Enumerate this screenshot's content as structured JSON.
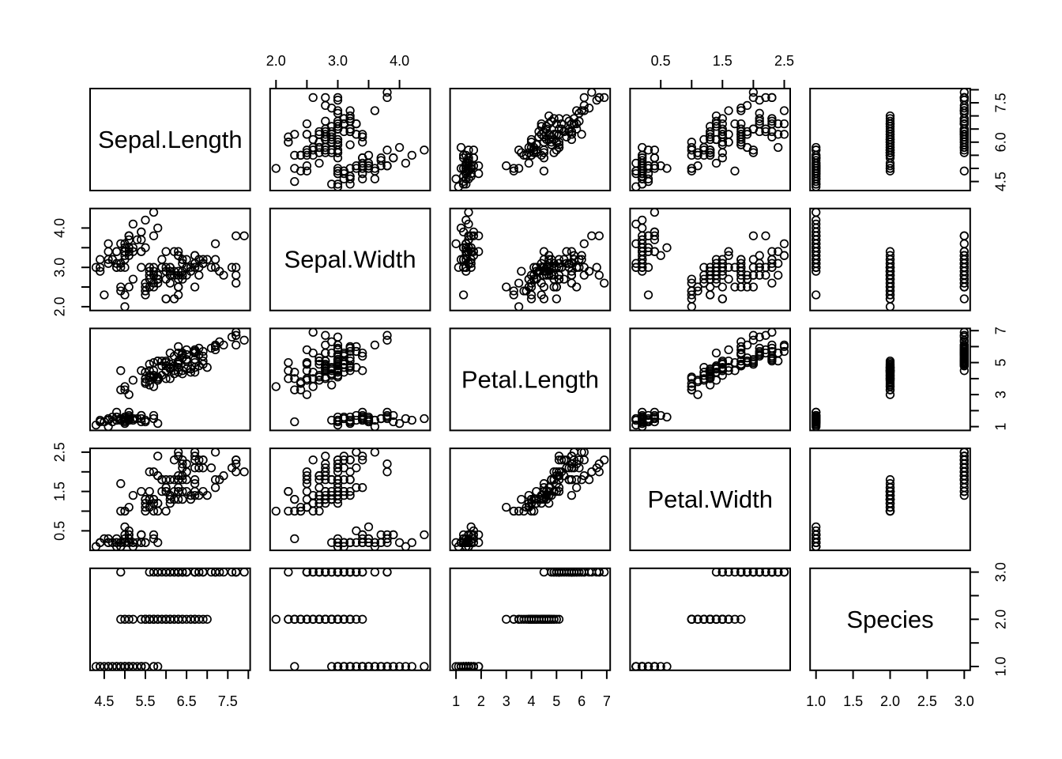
{
  "figure": {
    "background": "#ffffff",
    "stroke_color": "#000000",
    "point_style": "open-circle"
  },
  "chart_data": {
    "type": "scatter",
    "subtype": "scatterplot-matrix (R pairs plot)",
    "title": "",
    "legend": "none",
    "grid": "off",
    "variables": [
      {
        "name": "Sepal.Length",
        "range": [
          4.156,
          8.044
        ],
        "ticks": [
          4.5,
          5.0,
          5.5,
          6.0,
          6.5,
          7.0,
          7.5,
          8.0
        ],
        "labels_h": [
          [
            4.5,
            "4.5"
          ],
          [
            5.5,
            "5.5"
          ],
          [
            6.5,
            "6.5"
          ],
          [
            7.5,
            "7.5"
          ]
        ],
        "labels_v": [
          [
            4.5,
            "4.5"
          ],
          [
            6.0,
            "6.0"
          ],
          [
            7.5,
            "7.5"
          ]
        ]
      },
      {
        "name": "Sepal.Width",
        "range": [
          1.904,
          4.496
        ],
        "ticks": [
          2.0,
          2.5,
          3.0,
          3.5,
          4.0
        ],
        "labels_h": [
          [
            2.0,
            "2.0"
          ],
          [
            3.0,
            "3.0"
          ],
          [
            4.0,
            "4.0"
          ]
        ],
        "labels_v": [
          [
            2.0,
            "2.0"
          ],
          [
            3.0,
            "3.0"
          ],
          [
            4.0,
            "4.0"
          ]
        ]
      },
      {
        "name": "Petal.Length",
        "range": [
          0.764,
          7.136
        ],
        "ticks": [
          1,
          2,
          3,
          4,
          5,
          6,
          7
        ],
        "labels_h": [
          [
            1,
            "1"
          ],
          [
            2,
            "2"
          ],
          [
            3,
            "3"
          ],
          [
            4,
            "4"
          ],
          [
            5,
            "5"
          ],
          [
            6,
            "6"
          ],
          [
            7,
            "7"
          ]
        ],
        "labels_v": [
          [
            1,
            "1"
          ],
          [
            3,
            "3"
          ],
          [
            5,
            "5"
          ],
          [
            7,
            "7"
          ]
        ]
      },
      {
        "name": "Petal.Width",
        "range": [
          0.004,
          2.596
        ],
        "ticks": [
          0.5,
          1.0,
          1.5,
          2.0,
          2.5
        ],
        "labels_h": [
          [
            0.5,
            "0.5"
          ],
          [
            1.5,
            "1.5"
          ],
          [
            2.5,
            "2.5"
          ]
        ],
        "labels_v": [
          [
            0.5,
            "0.5"
          ],
          [
            1.5,
            "1.5"
          ],
          [
            2.5,
            "2.5"
          ]
        ]
      },
      {
        "name": "Species",
        "range": [
          0.92,
          3.08
        ],
        "ticks": [
          1.0,
          1.5,
          2.0,
          2.5,
          3.0
        ],
        "labels_h": [
          [
            1.0,
            "1.0"
          ],
          [
            1.5,
            "1.5"
          ],
          [
            2.0,
            "2.0"
          ],
          [
            2.5,
            "2.5"
          ],
          [
            3.0,
            "3.0"
          ]
        ],
        "labels_v": [
          [
            1.0,
            "1.0"
          ],
          [
            2.0,
            "2.0"
          ],
          [
            3.0,
            "3.0"
          ]
        ]
      }
    ],
    "layout": {
      "rows": 5,
      "cols": 5,
      "top_axis_cols": [
        1,
        3
      ],
      "bottom_axis_cols": [
        0,
        2,
        4
      ],
      "left_axis_rows": [
        1,
        3
      ],
      "right_axis_rows": [
        0,
        2,
        4
      ],
      "diagonal": "variable-name-labels"
    },
    "points": [
      [
        5.1,
        3.5,
        1.4,
        0.2,
        1
      ],
      [
        4.9,
        3.0,
        1.4,
        0.2,
        1
      ],
      [
        4.7,
        3.2,
        1.3,
        0.2,
        1
      ],
      [
        4.6,
        3.1,
        1.5,
        0.2,
        1
      ],
      [
        5.0,
        3.6,
        1.4,
        0.2,
        1
      ],
      [
        5.4,
        3.9,
        1.7,
        0.4,
        1
      ],
      [
        4.6,
        3.4,
        1.4,
        0.3,
        1
      ],
      [
        5.0,
        3.4,
        1.5,
        0.2,
        1
      ],
      [
        4.4,
        2.9,
        1.4,
        0.2,
        1
      ],
      [
        4.9,
        3.1,
        1.5,
        0.1,
        1
      ],
      [
        5.4,
        3.7,
        1.5,
        0.2,
        1
      ],
      [
        4.8,
        3.4,
        1.6,
        0.2,
        1
      ],
      [
        4.8,
        3.0,
        1.4,
        0.1,
        1
      ],
      [
        4.3,
        3.0,
        1.1,
        0.1,
        1
      ],
      [
        5.8,
        4.0,
        1.2,
        0.2,
        1
      ],
      [
        5.7,
        4.4,
        1.5,
        0.4,
        1
      ],
      [
        5.4,
        3.9,
        1.3,
        0.4,
        1
      ],
      [
        5.1,
        3.5,
        1.4,
        0.3,
        1
      ],
      [
        5.7,
        3.8,
        1.7,
        0.3,
        1
      ],
      [
        5.1,
        3.8,
        1.5,
        0.3,
        1
      ],
      [
        5.4,
        3.4,
        1.7,
        0.2,
        1
      ],
      [
        5.1,
        3.7,
        1.5,
        0.4,
        1
      ],
      [
        4.6,
        3.6,
        1.0,
        0.2,
        1
      ],
      [
        5.1,
        3.3,
        1.7,
        0.5,
        1
      ],
      [
        4.8,
        3.4,
        1.9,
        0.2,
        1
      ],
      [
        5.0,
        3.0,
        1.6,
        0.2,
        1
      ],
      [
        5.0,
        3.4,
        1.6,
        0.4,
        1
      ],
      [
        5.2,
        3.5,
        1.5,
        0.2,
        1
      ],
      [
        5.2,
        3.4,
        1.4,
        0.2,
        1
      ],
      [
        4.7,
        3.2,
        1.6,
        0.2,
        1
      ],
      [
        4.8,
        3.1,
        1.6,
        0.2,
        1
      ],
      [
        5.4,
        3.4,
        1.5,
        0.4,
        1
      ],
      [
        5.2,
        4.1,
        1.5,
        0.1,
        1
      ],
      [
        5.5,
        4.2,
        1.4,
        0.2,
        1
      ],
      [
        4.9,
        3.1,
        1.5,
        0.2,
        1
      ],
      [
        5.0,
        3.2,
        1.2,
        0.2,
        1
      ],
      [
        5.5,
        3.5,
        1.3,
        0.2,
        1
      ],
      [
        4.9,
        3.6,
        1.4,
        0.1,
        1
      ],
      [
        4.4,
        3.0,
        1.3,
        0.2,
        1
      ],
      [
        5.1,
        3.4,
        1.5,
        0.2,
        1
      ],
      [
        5.0,
        3.5,
        1.3,
        0.3,
        1
      ],
      [
        4.5,
        2.3,
        1.3,
        0.3,
        1
      ],
      [
        4.4,
        3.2,
        1.3,
        0.2,
        1
      ],
      [
        5.0,
        3.5,
        1.6,
        0.6,
        1
      ],
      [
        5.1,
        3.8,
        1.9,
        0.4,
        1
      ],
      [
        4.8,
        3.0,
        1.4,
        0.3,
        1
      ],
      [
        5.1,
        3.8,
        1.6,
        0.2,
        1
      ],
      [
        4.6,
        3.2,
        1.4,
        0.2,
        1
      ],
      [
        5.3,
        3.7,
        1.5,
        0.2,
        1
      ],
      [
        5.0,
        3.3,
        1.4,
        0.2,
        1
      ],
      [
        7.0,
        3.2,
        4.7,
        1.4,
        2
      ],
      [
        6.4,
        3.2,
        4.5,
        1.5,
        2
      ],
      [
        6.9,
        3.1,
        4.9,
        1.5,
        2
      ],
      [
        5.5,
        2.3,
        4.0,
        1.3,
        2
      ],
      [
        6.5,
        2.8,
        4.6,
        1.5,
        2
      ],
      [
        5.7,
        2.8,
        4.5,
        1.3,
        2
      ],
      [
        6.3,
        3.3,
        4.7,
        1.6,
        2
      ],
      [
        4.9,
        2.4,
        3.3,
        1.0,
        2
      ],
      [
        6.6,
        2.9,
        4.6,
        1.3,
        2
      ],
      [
        5.2,
        2.7,
        3.9,
        1.4,
        2
      ],
      [
        5.0,
        2.0,
        3.5,
        1.0,
        2
      ],
      [
        5.9,
        3.0,
        4.2,
        1.5,
        2
      ],
      [
        6.0,
        2.2,
        4.0,
        1.0,
        2
      ],
      [
        6.1,
        2.9,
        4.7,
        1.4,
        2
      ],
      [
        5.6,
        2.9,
        3.6,
        1.3,
        2
      ],
      [
        6.7,
        3.1,
        4.4,
        1.4,
        2
      ],
      [
        5.6,
        3.0,
        4.5,
        1.5,
        2
      ],
      [
        5.8,
        2.7,
        4.1,
        1.0,
        2
      ],
      [
        6.2,
        2.2,
        4.5,
        1.5,
        2
      ],
      [
        5.6,
        2.5,
        3.9,
        1.1,
        2
      ],
      [
        5.9,
        3.2,
        4.8,
        1.8,
        2
      ],
      [
        6.1,
        2.8,
        4.0,
        1.3,
        2
      ],
      [
        6.3,
        2.5,
        4.9,
        1.5,
        2
      ],
      [
        6.1,
        2.8,
        4.7,
        1.2,
        2
      ],
      [
        6.4,
        2.9,
        4.3,
        1.3,
        2
      ],
      [
        6.6,
        3.0,
        4.4,
        1.4,
        2
      ],
      [
        6.8,
        2.8,
        4.8,
        1.4,
        2
      ],
      [
        6.7,
        3.0,
        5.0,
        1.7,
        2
      ],
      [
        6.0,
        2.9,
        4.5,
        1.5,
        2
      ],
      [
        5.7,
        2.6,
        3.5,
        1.0,
        2
      ],
      [
        5.5,
        2.4,
        3.8,
        1.1,
        2
      ],
      [
        5.5,
        2.4,
        3.7,
        1.0,
        2
      ],
      [
        5.8,
        2.7,
        3.9,
        1.2,
        2
      ],
      [
        6.0,
        2.7,
        5.1,
        1.6,
        2
      ],
      [
        5.4,
        3.0,
        4.5,
        1.5,
        2
      ],
      [
        6.0,
        3.4,
        4.5,
        1.6,
        2
      ],
      [
        6.7,
        3.1,
        4.7,
        1.5,
        2
      ],
      [
        6.3,
        2.3,
        4.4,
        1.3,
        2
      ],
      [
        5.6,
        3.0,
        4.1,
        1.3,
        2
      ],
      [
        5.5,
        2.5,
        4.0,
        1.3,
        2
      ],
      [
        5.5,
        2.6,
        4.4,
        1.2,
        2
      ],
      [
        6.1,
        3.0,
        4.6,
        1.4,
        2
      ],
      [
        5.8,
        2.6,
        4.0,
        1.2,
        2
      ],
      [
        5.0,
        2.3,
        3.3,
        1.0,
        2
      ],
      [
        5.6,
        2.7,
        4.2,
        1.3,
        2
      ],
      [
        5.7,
        3.0,
        4.2,
        1.2,
        2
      ],
      [
        5.7,
        2.9,
        4.2,
        1.3,
        2
      ],
      [
        6.2,
        2.9,
        4.3,
        1.3,
        2
      ],
      [
        5.1,
        2.5,
        3.0,
        1.1,
        2
      ],
      [
        5.7,
        2.8,
        4.1,
        1.3,
        2
      ],
      [
        6.3,
        3.3,
        6.0,
        2.5,
        3
      ],
      [
        5.8,
        2.7,
        5.1,
        1.9,
        3
      ],
      [
        7.1,
        3.0,
        5.9,
        2.1,
        3
      ],
      [
        6.3,
        2.9,
        5.6,
        1.8,
        3
      ],
      [
        6.5,
        3.0,
        5.8,
        2.2,
        3
      ],
      [
        7.6,
        3.0,
        6.6,
        2.1,
        3
      ],
      [
        4.9,
        2.5,
        4.5,
        1.7,
        3
      ],
      [
        7.3,
        2.9,
        6.3,
        1.8,
        3
      ],
      [
        6.7,
        2.5,
        5.8,
        1.8,
        3
      ],
      [
        7.2,
        3.6,
        6.1,
        2.5,
        3
      ],
      [
        6.5,
        3.2,
        5.1,
        2.0,
        3
      ],
      [
        6.4,
        2.7,
        5.3,
        1.9,
        3
      ],
      [
        6.8,
        3.0,
        5.5,
        2.1,
        3
      ],
      [
        5.7,
        2.5,
        5.0,
        2.0,
        3
      ],
      [
        5.8,
        2.8,
        5.1,
        2.4,
        3
      ],
      [
        6.4,
        3.2,
        5.3,
        2.3,
        3
      ],
      [
        6.5,
        3.0,
        5.5,
        1.8,
        3
      ],
      [
        7.7,
        3.8,
        6.7,
        2.2,
        3
      ],
      [
        7.7,
        2.6,
        6.9,
        2.3,
        3
      ],
      [
        6.0,
        2.2,
        5.0,
        1.5,
        3
      ],
      [
        6.9,
        3.2,
        5.7,
        2.3,
        3
      ],
      [
        5.6,
        2.8,
        4.9,
        2.0,
        3
      ],
      [
        7.7,
        2.8,
        6.7,
        2.0,
        3
      ],
      [
        6.3,
        2.7,
        4.9,
        1.8,
        3
      ],
      [
        6.7,
        3.3,
        5.7,
        2.1,
        3
      ],
      [
        7.2,
        3.2,
        6.0,
        1.8,
        3
      ],
      [
        6.2,
        2.8,
        4.8,
        1.8,
        3
      ],
      [
        6.1,
        3.0,
        4.9,
        1.8,
        3
      ],
      [
        6.4,
        2.8,
        5.6,
        2.1,
        3
      ],
      [
        7.2,
        3.0,
        5.8,
        1.6,
        3
      ],
      [
        7.4,
        2.8,
        6.1,
        1.9,
        3
      ],
      [
        7.9,
        3.8,
        6.4,
        2.0,
        3
      ],
      [
        6.4,
        2.8,
        5.6,
        2.2,
        3
      ],
      [
        6.3,
        2.8,
        5.1,
        1.5,
        3
      ],
      [
        6.1,
        2.6,
        5.6,
        1.4,
        3
      ],
      [
        7.7,
        3.0,
        6.1,
        2.3,
        3
      ],
      [
        6.3,
        3.4,
        5.6,
        2.4,
        3
      ],
      [
        6.4,
        3.1,
        5.5,
        1.8,
        3
      ],
      [
        6.0,
        3.0,
        4.8,
        1.8,
        3
      ],
      [
        6.9,
        3.1,
        5.4,
        2.1,
        3
      ],
      [
        6.7,
        3.1,
        5.6,
        2.4,
        3
      ],
      [
        6.9,
        3.1,
        5.1,
        2.3,
        3
      ],
      [
        5.8,
        2.7,
        5.1,
        1.9,
        3
      ],
      [
        6.8,
        3.2,
        5.9,
        2.3,
        3
      ],
      [
        6.7,
        3.3,
        5.7,
        2.5,
        3
      ],
      [
        6.7,
        3.0,
        5.2,
        2.3,
        3
      ],
      [
        6.3,
        2.5,
        5.0,
        1.9,
        3
      ],
      [
        6.5,
        3.0,
        5.2,
        2.0,
        3
      ],
      [
        6.2,
        3.4,
        5.4,
        2.3,
        3
      ],
      [
        5.9,
        3.0,
        5.1,
        1.8,
        3
      ]
    ]
  }
}
